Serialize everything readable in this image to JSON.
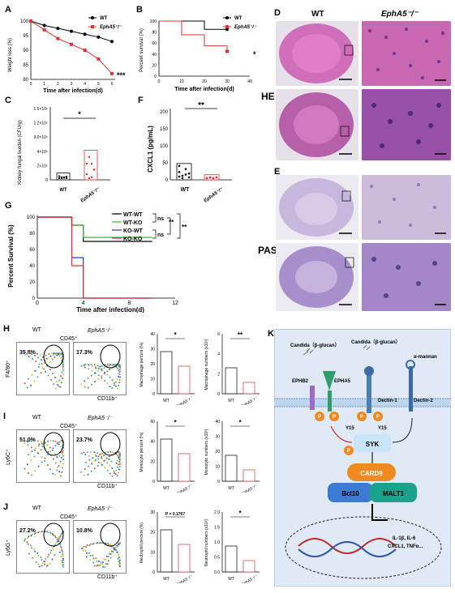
{
  "panels": [
    "A",
    "B",
    "C",
    "D",
    "E",
    "F",
    "G",
    "H",
    "I",
    "J",
    "K"
  ],
  "colors": {
    "wt": "#000000",
    "ko": "#e03030",
    "wtko": "#3bb33b",
    "kowt": "#2040c0",
    "he": "#c96fb6",
    "pas": "#b7a3cf",
    "mem": "#bcd6ee"
  },
  "panelA": {
    "ylabel": "Weight loss (%)",
    "xlabel": "Time after infection(d)",
    "yticks": [
      "100",
      "95",
      "90",
      "85",
      "80"
    ],
    "xticks": [
      "0",
      "1",
      "2",
      "3",
      "4",
      "5",
      "6"
    ],
    "legend": [
      "WT",
      "EphA5⁻/⁻"
    ],
    "sig": "***"
  },
  "panelB": {
    "ylabel": "Percent survival (%)",
    "xlabel": "Time after infection(d)",
    "yticks": [
      "100",
      "80",
      "60",
      "40",
      "20",
      "0"
    ],
    "xticks": [
      "0",
      "10",
      "20",
      "30",
      "40"
    ],
    "legend": [
      "WT",
      "EphA5⁻/⁻"
    ],
    "sig": "*"
  },
  "panelC": {
    "ylabel": "Kidney fungal burden (CFU/g)",
    "yticks": [
      "1.5×10⁶",
      "1.2×10⁶",
      "9.0×10⁵",
      "4×10⁵",
      "2×10⁵",
      "0"
    ],
    "xticks": [
      "WT",
      "EphA5⁻/⁻"
    ],
    "sig": "*"
  },
  "panelF": {
    "ylabel": "CXCL1 (pg/mL)",
    "yticks": [
      "200",
      "150",
      "100",
      "50",
      "0"
    ],
    "xticks": [
      "WT",
      "EphA5⁻/⁻"
    ],
    "sig": "**"
  },
  "panelG": {
    "ylabel": "Percent  Survival (%)",
    "xlabel": "Time after infection(d)",
    "yticks": [
      "100",
      "80",
      "60",
      "40",
      "20",
      "0"
    ],
    "xticks": [
      "0",
      "4",
      "8",
      "12"
    ],
    "legend": [
      "WT-WT",
      "WT-KO",
      "KO-WT",
      "KO-KO"
    ],
    "ns1": "ns",
    "ns2": "ns",
    "sig1": "**",
    "sig2": "**"
  },
  "histo": {
    "wt": "WT",
    "ko": "EphA5⁻/⁻",
    "he": "HE",
    "pas": "PAS"
  },
  "panelH": {
    "gate": "CD45⁺",
    "wt": "WT",
    "ko": "EphA5⁻/⁻",
    "ylabel": "F4/80⁺",
    "xlabel": "CD11b⁺",
    "pct_wt": "35.8%",
    "pct_ko": "17.3%",
    "bar1_ylabel": "Macrophage percent (%)",
    "bar2_ylabel": "Macrophage numbers (x10³)",
    "bar1_yticks": [
      "40",
      "30",
      "20",
      "10",
      "0"
    ],
    "bar2_yticks": [
      "6",
      "4",
      "2",
      "0"
    ],
    "sig1": "*",
    "sig2": "**"
  },
  "panelI": {
    "gate": "CD45⁺",
    "wt": "WT",
    "ko": "EphA5⁻/⁻",
    "ylabel": "Ly6C⁺",
    "xlabel": "CD11b⁺",
    "pct_wt": "51.0%",
    "pct_ko": "23.7%",
    "bar1_ylabel": "Monocyte percent (%)",
    "bar2_ylabel": "Monocyte numbers (x10³)",
    "bar1_yticks": [
      "60",
      "40",
      "20",
      "0"
    ],
    "bar2_yticks": [
      "40",
      "30",
      "20",
      "10",
      "0"
    ],
    "sig1": "*",
    "sig2": "*"
  },
  "panelJ": {
    "gate": "CD45⁺",
    "wt": "WT",
    "ko": "EphA5⁻/⁻",
    "ylabel": "Ly6G⁺",
    "xlabel": "CD11b⁺",
    "pct_wt": "27.2%",
    "pct_ko": "10.8%",
    "bar1_ylabel": "Neutrophil percent (%)",
    "bar2_ylabel": "Neutrophil numbers (x10³)",
    "bar1_yticks": [
      "30",
      "20",
      "10",
      "0"
    ],
    "bar2_yticks": [
      "2.0",
      "1.5",
      "1.0",
      "0.5",
      "0.0"
    ],
    "pval": "P = 0.1767",
    "sig2": "*"
  },
  "panelK": {
    "candida1": "Candida（β-glucan）",
    "candida2": "Candida（β-glucan）",
    "mannan": "α-mannan",
    "ephb2": "EPHB2",
    "epha5": "EPHA5",
    "dectin1": "Dectin-1",
    "dectin2": "Dectin-2",
    "y15a": "Y15",
    "y15b": "Y15",
    "syk": "SYK",
    "card9": "CARD9",
    "bcl10": "Bcl10",
    "malt1": "MALT1",
    "genes1": "IL-1β,  IL-6",
    "genes2": "CXCL1,  TNFα...",
    "p": "P"
  },
  "chart_data": [
    {
      "type": "line",
      "panel": "A",
      "x": [
        0,
        1,
        2,
        3,
        4,
        5,
        6
      ],
      "series": [
        {
          "name": "WT",
          "values": [
            100,
            98.5,
            97.5,
            96.5,
            95.5,
            94.5,
            93
          ]
        },
        {
          "name": "EphA5⁻/⁻",
          "values": [
            100,
            97,
            94,
            92,
            90,
            87,
            82
          ]
        }
      ],
      "ylim": [
        80,
        100
      ]
    },
    {
      "type": "line",
      "panel": "B",
      "x": [
        0,
        10,
        20,
        30
      ],
      "series": [
        {
          "name": "WT",
          "values": [
            100,
            100,
            85,
            85
          ]
        },
        {
          "name": "EphA5⁻/⁻",
          "values": [
            100,
            75,
            55,
            45
          ]
        }
      ],
      "ylim": [
        0,
        100
      ]
    },
    {
      "type": "bar",
      "panel": "C",
      "categories": [
        "WT",
        "EphA5⁻/⁻"
      ],
      "values": [
        60000,
        260000
      ]
    },
    {
      "type": "bar",
      "panel": "F",
      "categories": [
        "WT",
        "EphA5⁻/⁻"
      ],
      "values": [
        48,
        15
      ]
    },
    {
      "type": "line",
      "panel": "G",
      "series": [
        {
          "name": "WT-WT",
          "values": [
            100,
            100,
            90,
            70,
            70
          ]
        },
        {
          "name": "WT-KO",
          "values": [
            100,
            100,
            90,
            75,
            75
          ]
        },
        {
          "name": "KO-WT",
          "values": [
            100,
            100,
            50,
            0,
            0
          ]
        },
        {
          "name": "KO-KO",
          "values": [
            100,
            100,
            40,
            0,
            0
          ]
        }
      ],
      "x": [
        0,
        2,
        3,
        4,
        10
      ]
    }
  ]
}
